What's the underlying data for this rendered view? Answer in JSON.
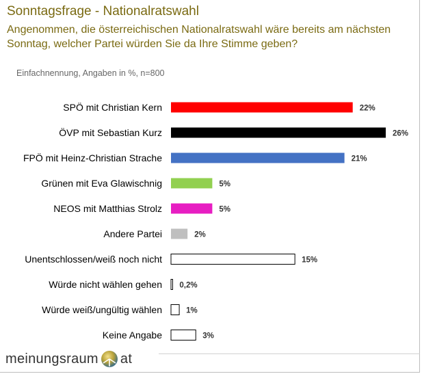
{
  "header": {
    "title": "Sonntagsfrage - Nationalratswahl",
    "subtitle": "Angenommen, die österreichischen Nationalratswahl wäre bereits am nächsten Sonntag, welcher Partei würden Sie da Ihre Stimme geben?",
    "note": "Einfachnennung, Angaben in %, n=800"
  },
  "logo": {
    "left": "meinungsraum",
    "right": "at"
  },
  "colors": {
    "title": "#7a6a12",
    "spoe": "#ff0000",
    "oevp": "#000000",
    "fpoe": "#4472c4",
    "gruene": "#92d050",
    "neos": "#e71ec2",
    "andere": "#bfbfbf",
    "outline": "#000000"
  },
  "chart_data": {
    "type": "bar",
    "orientation": "horizontal",
    "categories": [
      "SPÖ mit Christian Kern",
      "ÖVP mit Sebastian Kurz",
      "FPÖ mit Heinz-Christian Strache",
      "Grünen mit Eva Glawischnig",
      "NEOS mit Matthias Strolz",
      "Andere Partei",
      "Unentschlossen/weiß noch nicht",
      "Würde nicht wählen gehen",
      "Würde weiß/ungültig wählen",
      "Keine Angabe"
    ],
    "values": [
      22,
      26,
      21,
      5,
      5,
      2,
      15,
      0.2,
      1,
      3
    ],
    "data_labels": [
      "22%",
      "26%",
      "21%",
      "5%",
      "5%",
      "2%",
      "15%",
      "0,2%",
      "1%",
      "3%"
    ],
    "bar_colors": [
      "#ff0000",
      "#000000",
      "#4472c4",
      "#92d050",
      "#e71ec2",
      "#bfbfbf",
      "#ffffff",
      "#ffffff",
      "#ffffff",
      "#ffffff"
    ],
    "outlined": [
      false,
      false,
      false,
      false,
      false,
      false,
      true,
      true,
      true,
      true
    ],
    "xlim": [
      0,
      26
    ],
    "grid": false,
    "legend": "none"
  }
}
